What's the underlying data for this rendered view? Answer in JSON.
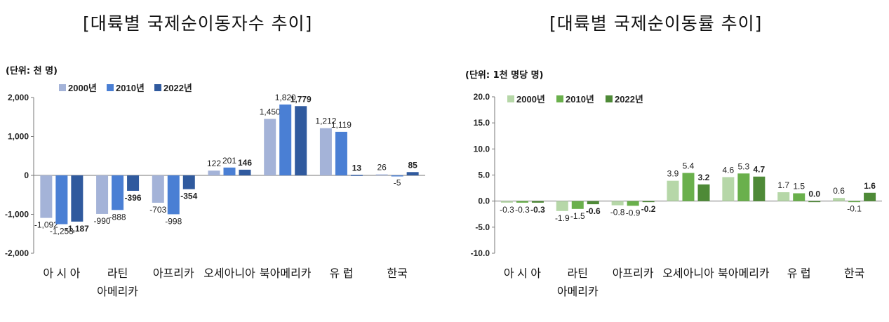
{
  "chart_data": [
    {
      "type": "bar",
      "title": "[대륙별 국제순이동자수 추이]",
      "unit_label": "(단위: 천 명)",
      "categories": [
        [
          "아 시 아"
        ],
        [
          "라틴",
          "아메리카"
        ],
        [
          "아프리카"
        ],
        [
          "오세아니아"
        ],
        [
          "북아메리카"
        ],
        [
          "유 럽"
        ],
        [
          "한국"
        ]
      ],
      "series": [
        {
          "name": "2000년",
          "values": [
            -1092,
            -990,
            -703,
            122,
            1450,
            1212,
            26
          ],
          "labels": [
            "-1,092",
            "-990",
            "-703",
            "122",
            "1,450",
            "1,212",
            "26"
          ],
          "bold": false
        },
        {
          "name": "2010년",
          "values": [
            -1253,
            -888,
            -998,
            201,
            1820,
            1119,
            -5
          ],
          "labels": [
            "-1,253",
            "-888",
            "-998",
            "201",
            "1,820",
            "1,119",
            "-5"
          ],
          "bold": false
        },
        {
          "name": "2022년",
          "values": [
            -1187,
            -396,
            -354,
            146,
            1779,
            13,
            85
          ],
          "labels": [
            "-1,187",
            "-396",
            "-354",
            "146",
            "1,779",
            "13",
            "85"
          ],
          "bold": true
        }
      ],
      "colors": [
        "#a4b3d8",
        "#4a7fd4",
        "#305a9e"
      ],
      "ylim": [
        -2000,
        2000
      ],
      "yticks": [
        2000,
        1000,
        0,
        -1000,
        -2000
      ],
      "ytick_labels": [
        "2,000",
        "1,000",
        "0",
        "-1,000",
        "-2,000"
      ],
      "legend_position": "top-left"
    },
    {
      "type": "bar",
      "title": "[대륙별 국제순이동률 추이]",
      "unit_label": "(단위: 1천 명당 명)",
      "categories": [
        [
          "아 시 아"
        ],
        [
          "라틴",
          "아메리카"
        ],
        [
          "아프리카"
        ],
        [
          "오세아니아"
        ],
        [
          "북아메리카"
        ],
        [
          "유 럽"
        ],
        [
          "한국"
        ]
      ],
      "series": [
        {
          "name": "2000년",
          "values": [
            -0.3,
            -1.9,
            -0.8,
            3.9,
            4.6,
            1.7,
            0.6
          ],
          "labels": [
            "-0.3",
            "-1.9",
            "-0.8",
            "3.9",
            "4.6",
            "1.7",
            "0.6"
          ],
          "bold": false
        },
        {
          "name": "2010년",
          "values": [
            -0.3,
            -1.5,
            -0.9,
            5.4,
            5.3,
            1.5,
            -0.1
          ],
          "labels": [
            "-0.3",
            "-1.5",
            "-0.9",
            "5.4",
            "5.3",
            "1.5",
            "-0.1"
          ],
          "bold": false
        },
        {
          "name": "2022년",
          "values": [
            -0.3,
            -0.6,
            -0.2,
            3.2,
            4.7,
            0.0,
            1.6
          ],
          "labels": [
            "-0.3",
            "-0.6",
            "-0.2",
            "3.2",
            "4.7",
            "0.0",
            "1.6"
          ],
          "bold": true
        }
      ],
      "colors": [
        "#b6d7a8",
        "#6ab04c",
        "#4e8a37"
      ],
      "ylim": [
        -10,
        20
      ],
      "yticks": [
        20,
        15,
        10,
        5,
        0,
        -5,
        -10
      ],
      "ytick_labels": [
        "20.0",
        "15.0",
        "10.0",
        "5.0",
        "0.0",
        "-5.0",
        "-10.0"
      ],
      "legend_position": "top-left"
    }
  ]
}
